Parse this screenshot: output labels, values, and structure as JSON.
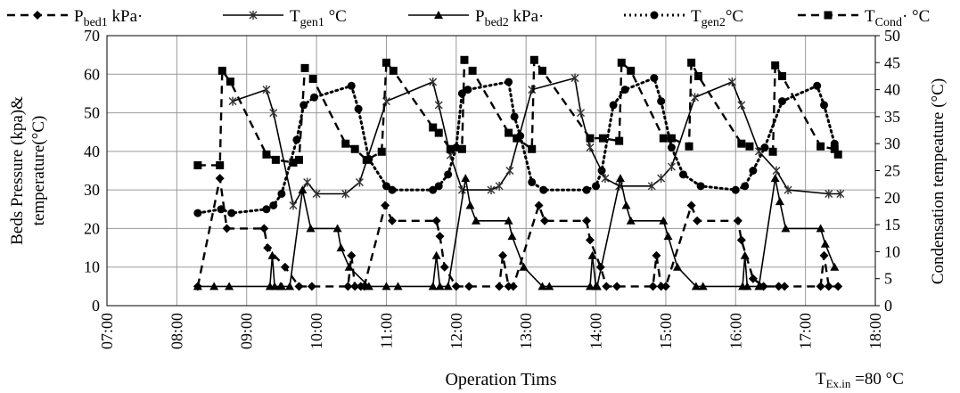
{
  "chart_data": {
    "type": "line",
    "xlabel": "Operation Tims",
    "ylabel": [
      "Beds Pressure (kpa)&",
      "temperature(°C)"
    ],
    "y2label": "Condensation  tempeature (°C)",
    "xlim": [
      "07:00",
      "18:00"
    ],
    "ylim": [
      0,
      70
    ],
    "y2lim": [
      0,
      50
    ],
    "x_ticks": [
      "07:00",
      "08:00",
      "09:00",
      "10:00",
      "11:00",
      "12:00",
      "13:00",
      "14:00",
      "15:00",
      "16:00",
      "17:00",
      "18:00"
    ],
    "y_ticks": [
      0,
      10,
      20,
      30,
      40,
      50,
      60,
      70
    ],
    "y2_ticks": [
      0,
      5,
      10,
      15,
      20,
      25,
      30,
      35,
      40,
      45,
      50
    ],
    "grid": true,
    "legend_position": "top",
    "annotation": {
      "prefix": "T",
      "sub": "Ex.in",
      "suffix": " =80 °C"
    },
    "series": [
      {
        "name": "Pbed1 kPa",
        "legend": {
          "prefix": "P",
          "sub": "bed1",
          "suffix": " kPa·"
        },
        "axis": "left",
        "style": "dash",
        "marker": "diamond",
        "points": [
          [
            "08:18",
            5
          ],
          [
            "08:37",
            33
          ],
          [
            "08:43",
            20
          ],
          [
            "09:15",
            20
          ],
          [
            "09:18",
            15
          ],
          [
            "09:33",
            10
          ],
          [
            "09:45",
            5
          ],
          [
            "09:56",
            5
          ],
          [
            "10:27",
            5
          ],
          [
            "10:30",
            13
          ],
          [
            "10:33",
            5
          ],
          [
            "10:38",
            5
          ],
          [
            "10:41",
            5
          ],
          [
            "10:59",
            26
          ],
          [
            "11:05",
            22
          ],
          [
            "11:43",
            22
          ],
          [
            "11:46",
            18
          ],
          [
            "11:50",
            10
          ],
          [
            "12:00",
            5
          ],
          [
            "12:11",
            5
          ],
          [
            "12:37",
            5
          ],
          [
            "12:40",
            13
          ],
          [
            "12:45",
            5
          ],
          [
            "12:49",
            5
          ],
          [
            "13:11",
            26
          ],
          [
            "13:16",
            22
          ],
          [
            "13:52",
            22
          ],
          [
            "13:55",
            17
          ],
          [
            "14:04",
            10
          ],
          [
            "14:09",
            5
          ],
          [
            "14:18",
            5
          ],
          [
            "14:49",
            5
          ],
          [
            "14:52",
            13
          ],
          [
            "14:56",
            5
          ],
          [
            "15:00",
            5
          ],
          [
            "15:22",
            26
          ],
          [
            "15:27",
            22
          ],
          [
            "16:02",
            22
          ],
          [
            "16:05",
            17
          ],
          [
            "16:15",
            7
          ],
          [
            "16:24",
            5
          ],
          [
            "16:37",
            5
          ],
          [
            "16:42",
            5
          ],
          [
            "17:13",
            5
          ],
          [
            "17:16",
            13
          ],
          [
            "17:20",
            5
          ],
          [
            "17:28",
            5
          ]
        ]
      },
      {
        "name": "Tgen1 °C",
        "legend": {
          "prefix": "T",
          "sub": "gen1",
          "suffix": " °C"
        },
        "axis": "left",
        "style": "solid",
        "marker": "star",
        "points": [
          [
            "08:48",
            53
          ],
          [
            "09:17",
            56
          ],
          [
            "09:23",
            50
          ],
          [
            "09:40",
            26
          ],
          [
            "09:52",
            32
          ],
          [
            "10:00",
            29
          ],
          [
            "10:25",
            29
          ],
          [
            "10:37",
            32
          ],
          [
            "11:00",
            53
          ],
          [
            "11:40",
            58
          ],
          [
            "11:45",
            52
          ],
          [
            "11:55",
            39
          ],
          [
            "12:05",
            30
          ],
          [
            "12:30",
            30
          ],
          [
            "12:37",
            31
          ],
          [
            "12:46",
            35
          ],
          [
            "13:05",
            56
          ],
          [
            "13:42",
            59
          ],
          [
            "13:47",
            50
          ],
          [
            "13:55",
            41
          ],
          [
            "14:08",
            33
          ],
          [
            "14:20",
            31
          ],
          [
            "14:48",
            31
          ],
          [
            "14:56",
            33
          ],
          [
            "15:05",
            36
          ],
          [
            "15:25",
            54
          ],
          [
            "15:57",
            58
          ],
          [
            "16:05",
            52
          ],
          [
            "16:20",
            40
          ],
          [
            "16:35",
            35
          ],
          [
            "16:45",
            30
          ],
          [
            "17:20",
            29
          ],
          [
            "17:30",
            29
          ]
        ]
      },
      {
        "name": "Pbed2 kPa",
        "legend": {
          "prefix": "P",
          "sub": "bed2",
          "suffix": " kPa·"
        },
        "axis": "left",
        "style": "solid",
        "marker": "triangle",
        "points": [
          [
            "08:18",
            5
          ],
          [
            "08:32",
            5
          ],
          [
            "08:45",
            5
          ],
          [
            "09:20",
            5
          ],
          [
            "09:22",
            13
          ],
          [
            "09:24",
            5
          ],
          [
            "09:29",
            5
          ],
          [
            "09:30",
            5
          ],
          [
            "09:37",
            5
          ],
          [
            "09:48",
            30
          ],
          [
            "09:55",
            20
          ],
          [
            "10:18",
            20
          ],
          [
            "10:21",
            15
          ],
          [
            "10:28",
            10
          ],
          [
            "10:45",
            5
          ],
          [
            "11:00",
            5
          ],
          [
            "11:10",
            5
          ],
          [
            "11:40",
            5
          ],
          [
            "11:43",
            13
          ],
          [
            "11:46",
            5
          ],
          [
            "11:53",
            5
          ],
          [
            "12:08",
            33
          ],
          [
            "12:12",
            26
          ],
          [
            "12:17",
            22
          ],
          [
            "12:45",
            22
          ],
          [
            "12:48",
            18
          ],
          [
            "12:58",
            10
          ],
          [
            "13:14",
            5
          ],
          [
            "13:20",
            5
          ],
          [
            "13:55",
            5
          ],
          [
            "13:57",
            13
          ],
          [
            "14:00",
            5
          ],
          [
            "14:01",
            5
          ],
          [
            "14:21",
            33
          ],
          [
            "14:26",
            26
          ],
          [
            "14:30",
            22
          ],
          [
            "14:58",
            22
          ],
          [
            "15:02",
            18
          ],
          [
            "15:10",
            10
          ],
          [
            "15:26",
            5
          ],
          [
            "15:32",
            5
          ],
          [
            "16:06",
            5
          ],
          [
            "16:08",
            13
          ],
          [
            "16:10",
            5
          ],
          [
            "16:20",
            5
          ],
          [
            "16:34",
            33
          ],
          [
            "16:38",
            27
          ],
          [
            "16:43",
            20
          ],
          [
            "17:13",
            20
          ],
          [
            "17:17",
            16
          ],
          [
            "17:25",
            10
          ]
        ]
      },
      {
        "name": "Tgen2 °C",
        "legend": {
          "prefix": "T",
          "sub": "gen2",
          "suffix": "°C"
        },
        "axis": "left",
        "style": "dot",
        "marker": "circle",
        "points": [
          [
            "08:18",
            24
          ],
          [
            "08:38",
            25
          ],
          [
            "08:47",
            24
          ],
          [
            "09:17",
            25
          ],
          [
            "09:23",
            26
          ],
          [
            "09:30",
            29
          ],
          [
            "09:43",
            43
          ],
          [
            "09:49",
            52
          ],
          [
            "09:58",
            54
          ],
          [
            "10:30",
            57
          ],
          [
            "10:36",
            51
          ],
          [
            "10:45",
            38
          ],
          [
            "11:00",
            31
          ],
          [
            "11:05",
            30
          ],
          [
            "11:40",
            30
          ],
          [
            "11:45",
            31
          ],
          [
            "11:53",
            34
          ],
          [
            "12:00",
            41
          ],
          [
            "12:05",
            55
          ],
          [
            "12:10",
            56
          ],
          [
            "12:45",
            58
          ],
          [
            "12:50",
            49
          ],
          [
            "12:55",
            44
          ],
          [
            "13:05",
            32
          ],
          [
            "13:15",
            30
          ],
          [
            "13:52",
            30
          ],
          [
            "14:00",
            31
          ],
          [
            "14:05",
            35
          ],
          [
            "14:15",
            52
          ],
          [
            "14:25",
            56
          ],
          [
            "14:50",
            59
          ],
          [
            "14:56",
            53
          ],
          [
            "15:05",
            41
          ],
          [
            "15:15",
            34
          ],
          [
            "15:30",
            31
          ],
          [
            "16:00",
            30
          ],
          [
            "16:08",
            31
          ],
          [
            "16:15",
            35
          ],
          [
            "16:25",
            41
          ],
          [
            "16:40",
            53
          ],
          [
            "17:10",
            57
          ],
          [
            "17:16",
            52
          ],
          [
            "17:25",
            42
          ]
        ]
      },
      {
        "name": "TCond. °C",
        "legend": {
          "prefix": "T",
          "sub": "Cond",
          "suffix": "· °C"
        },
        "axis": "right",
        "style": "dash",
        "marker": "square",
        "points": [
          [
            "08:18",
            26
          ],
          [
            "08:37",
            26
          ],
          [
            "08:39",
            43.5
          ],
          [
            "08:46",
            41.5
          ],
          [
            "09:17",
            28
          ],
          [
            "09:25",
            27
          ],
          [
            "09:40",
            26.5
          ],
          [
            "09:45",
            27
          ],
          [
            "09:50",
            44
          ],
          [
            "09:57",
            42
          ],
          [
            "10:25",
            30
          ],
          [
            "10:33",
            29
          ],
          [
            "10:43",
            27
          ],
          [
            "10:56",
            28.5
          ],
          [
            "11:00",
            45
          ],
          [
            "11:06",
            43.5
          ],
          [
            "11:40",
            33
          ],
          [
            "11:45",
            32
          ],
          [
            "11:55",
            29
          ],
          [
            "12:05",
            29
          ],
          [
            "12:07",
            45.5
          ],
          [
            "12:14",
            43.5
          ],
          [
            "12:45",
            32
          ],
          [
            "12:52",
            31
          ],
          [
            "13:05",
            29
          ],
          [
            "13:07",
            45.5
          ],
          [
            "13:14",
            43.5
          ],
          [
            "13:55",
            31
          ],
          [
            "14:06",
            31
          ],
          [
            "14:20",
            30.5
          ],
          [
            "14:22",
            45
          ],
          [
            "14:30",
            43.5
          ],
          [
            "14:58",
            31
          ],
          [
            "15:05",
            31
          ],
          [
            "15:20",
            29.5
          ],
          [
            "15:22",
            45
          ],
          [
            "15:28",
            42.5
          ],
          [
            "16:05",
            30
          ],
          [
            "16:12",
            29.5
          ],
          [
            "16:32",
            28.5
          ],
          [
            "16:34",
            44.5
          ],
          [
            "16:40",
            42.5
          ],
          [
            "17:13",
            29.5
          ],
          [
            "17:25",
            29
          ],
          [
            "17:28",
            28
          ]
        ]
      }
    ]
  }
}
